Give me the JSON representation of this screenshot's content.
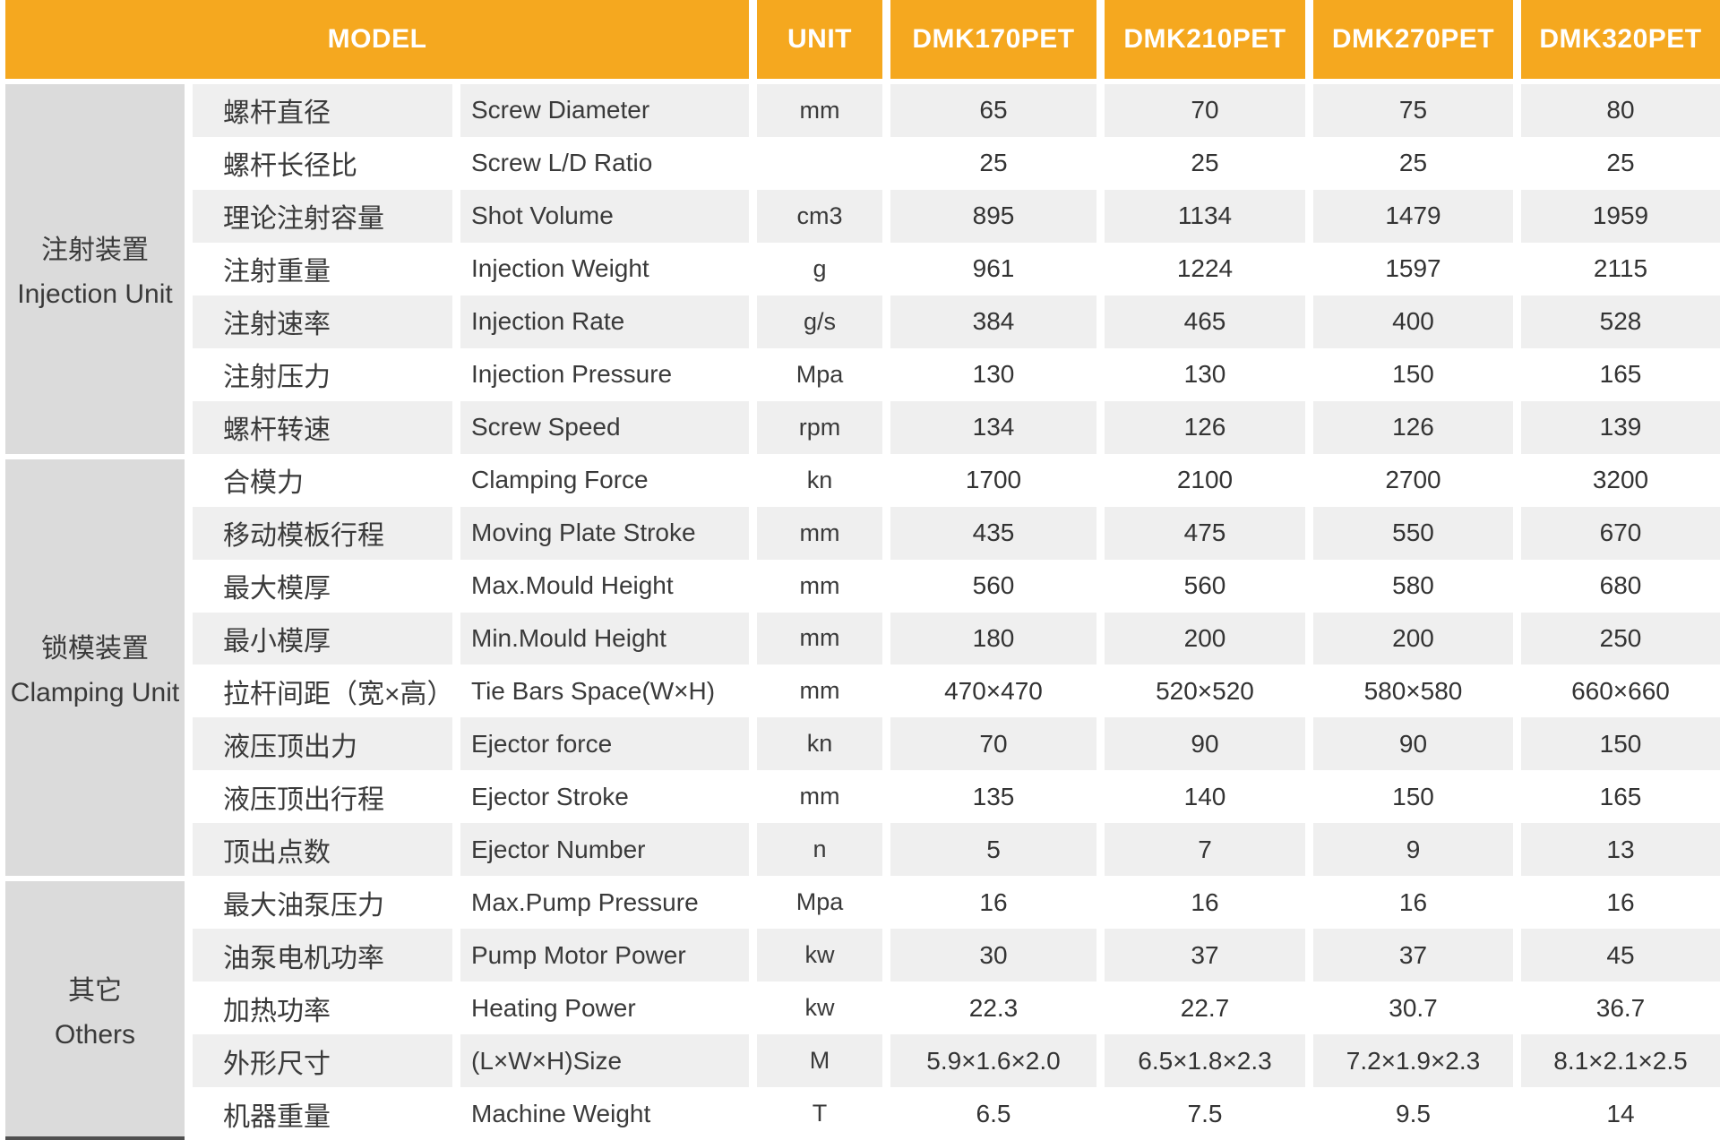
{
  "colors": {
    "header_bg": "#F5A81F",
    "header_text": "#FFFFFF",
    "section_bg": "#DBDBDB",
    "stripe_bg": "#EFEFEF",
    "text": "#3A3A3A"
  },
  "header": {
    "model_label": "MODEL",
    "unit_label": "UNIT",
    "models": [
      "DMK170PET",
      "DMK210PET",
      "DMK270PET",
      "DMK320PET"
    ]
  },
  "sections": [
    {
      "cn": "注射装置",
      "en": "Injection Unit",
      "rows": [
        {
          "cn": "螺杆直径",
          "en": "Screw Diameter",
          "unit": "mm",
          "values": [
            "65",
            "70",
            "75",
            "80"
          ]
        },
        {
          "cn": "螺杆长径比",
          "en": "Screw L/D Ratio",
          "unit": "",
          "values": [
            "25",
            "25",
            "25",
            "25"
          ]
        },
        {
          "cn": "理论注射容量",
          "en": "Shot Volume",
          "unit": "cm3",
          "values": [
            "895",
            "1134",
            "1479",
            "1959"
          ]
        },
        {
          "cn": "注射重量",
          "en": "Injection Weight",
          "unit": "g",
          "values": [
            "961",
            "1224",
            "1597",
            "2115"
          ]
        },
        {
          "cn": "注射速率",
          "en": "Injection Rate",
          "unit": "g/s",
          "values": [
            "384",
            "465",
            "400",
            "528"
          ]
        },
        {
          "cn": "注射压力",
          "en": "Injection Pressure",
          "unit": "Mpa",
          "values": [
            "130",
            "130",
            "150",
            "165"
          ]
        },
        {
          "cn": "螺杆转速",
          "en": "Screw Speed",
          "unit": "rpm",
          "values": [
            "134",
            "126",
            "126",
            "139"
          ]
        }
      ]
    },
    {
      "cn": "锁模装置",
      "en": "Clamping Unit",
      "rows": [
        {
          "cn": "合模力",
          "en": "Clamping Force",
          "unit": "kn",
          "values": [
            "1700",
            "2100",
            "2700",
            "3200"
          ]
        },
        {
          "cn": "移动模板行程",
          "en": "Moving Plate Stroke",
          "unit": "mm",
          "values": [
            "435",
            "475",
            "550",
            "670"
          ]
        },
        {
          "cn": "最大模厚",
          "en": "Max.Mould Height",
          "unit": "mm",
          "values": [
            "560",
            "560",
            "580",
            "680"
          ]
        },
        {
          "cn": "最小模厚",
          "en": "Min.Mould Height",
          "unit": "mm",
          "values": [
            "180",
            "200",
            "200",
            "250"
          ]
        },
        {
          "cn": "拉杆间距（宽×高）",
          "en": "Tie Bars Space(W×H)",
          "unit": "mm",
          "values": [
            "470×470",
            "520×520",
            "580×580",
            "660×660"
          ]
        },
        {
          "cn": "液压顶出力",
          "en": "Ejector force",
          "unit": "kn",
          "values": [
            "70",
            "90",
            "90",
            "150"
          ]
        },
        {
          "cn": "液压顶出行程",
          "en": "Ejector Stroke",
          "unit": "mm",
          "values": [
            "135",
            "140",
            "150",
            "165"
          ]
        },
        {
          "cn": "顶出点数",
          "en": "Ejector Number",
          "unit": "n",
          "values": [
            "5",
            "7",
            "9",
            "13"
          ]
        }
      ]
    },
    {
      "cn": "其它",
      "en": "Others",
      "rows": [
        {
          "cn": "最大油泵压力",
          "en": "Max.Pump Pressure",
          "unit": "Mpa",
          "values": [
            "16",
            "16",
            "16",
            "16"
          ]
        },
        {
          "cn": "油泵电机功率",
          "en": "Pump Motor Power",
          "unit": "kw",
          "values": [
            "30",
            "37",
            "37",
            "45"
          ]
        },
        {
          "cn": "加热功率",
          "en": "Heating Power",
          "unit": "kw",
          "values": [
            "22.3",
            "22.7",
            "30.7",
            "36.7"
          ]
        },
        {
          "cn": "外形尺寸",
          "en": "(L×W×H)Size",
          "unit": "M",
          "values": [
            "5.9×1.6×2.0",
            "6.5×1.8×2.3",
            "7.2×1.9×2.3",
            "8.1×2.1×2.5"
          ]
        },
        {
          "cn": "机器重量",
          "en": "Machine Weight",
          "unit": "T",
          "values": [
            "6.5",
            "7.5",
            "9.5",
            "14"
          ]
        }
      ]
    }
  ]
}
